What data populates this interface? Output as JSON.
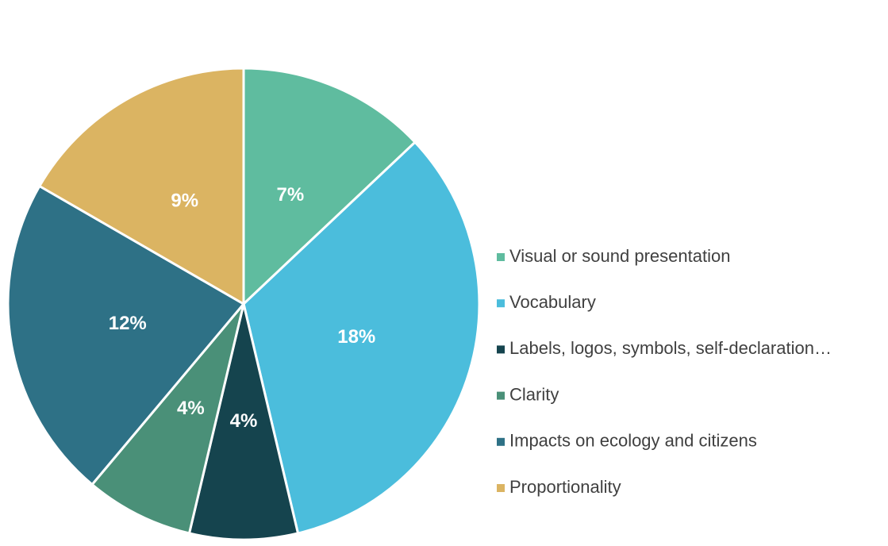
{
  "chart_data": {
    "type": "pie",
    "categories": [
      "Visual or sound presentation",
      "Vocabulary",
      "Labels, logos, symbols, self-declaration…",
      "Clarity",
      "Impacts on ecology and citizens",
      "Proportionality"
    ],
    "values": [
      7,
      18,
      4,
      4,
      12,
      9
    ],
    "value_labels": [
      "7%",
      "18%",
      "4%",
      "4%",
      "12%",
      "9%"
    ],
    "colors": [
      "#5fbc9f",
      "#4bbddc",
      "#15444e",
      "#4a9078",
      "#2e7186",
      "#dbb462"
    ],
    "legend": "right"
  }
}
